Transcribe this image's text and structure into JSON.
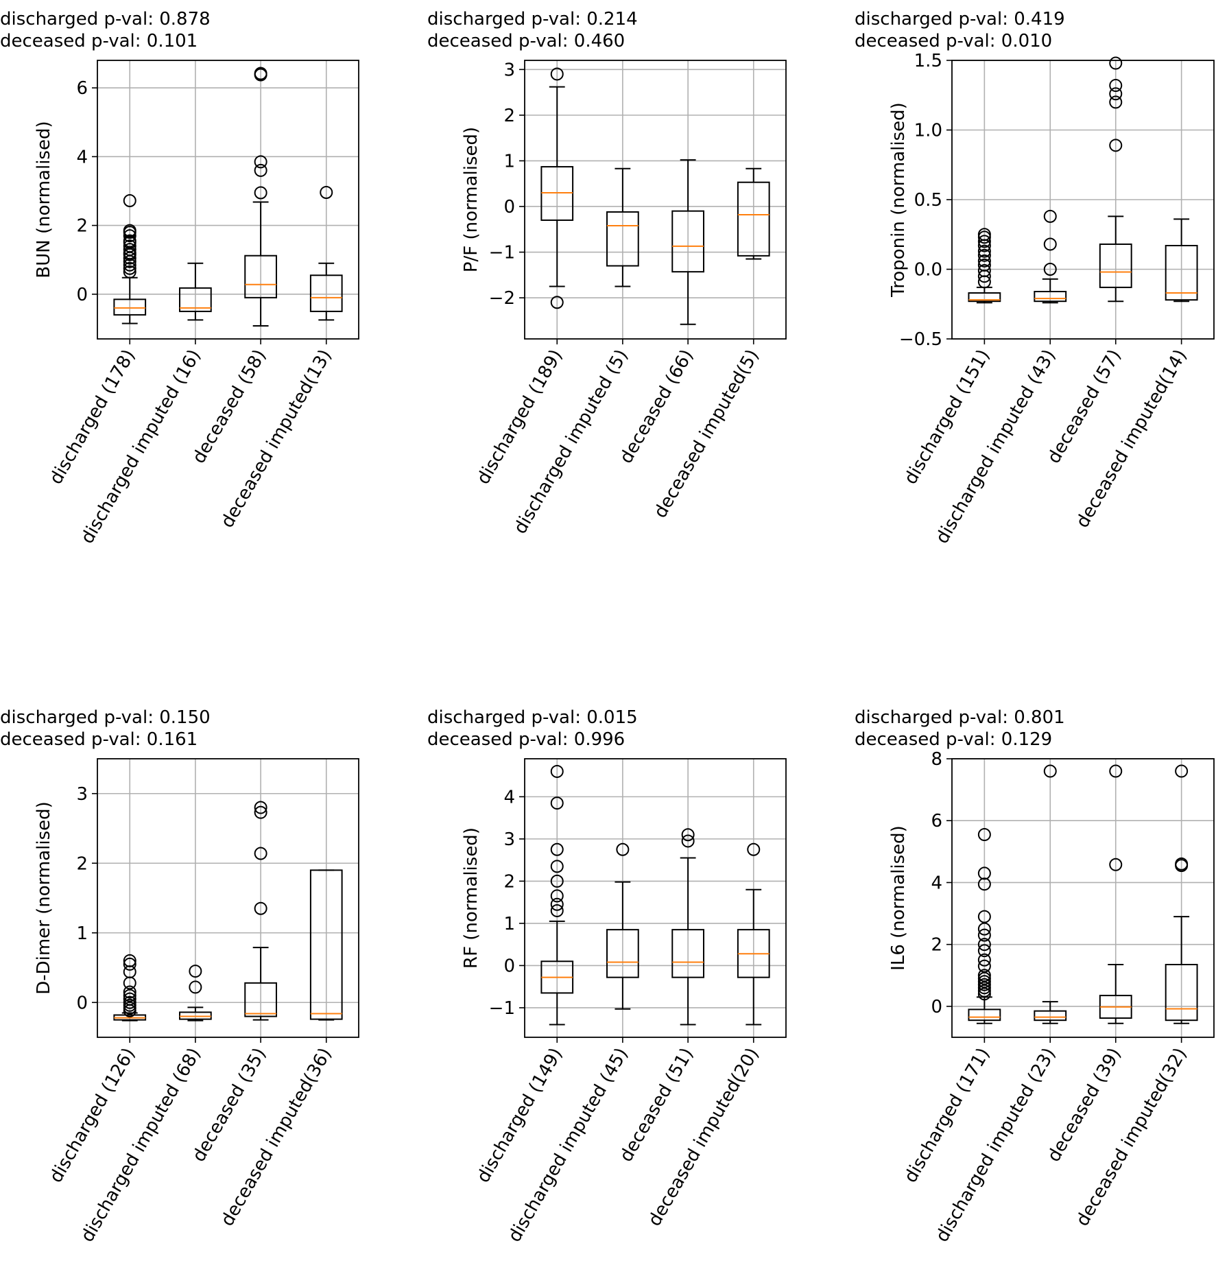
{
  "chart_data": [
    {
      "type": "boxplot",
      "title_lines": [
        "discharged p-val: 0.878",
        "deceased p-val: 0.101"
      ],
      "ylabel": "BUN (normalised)",
      "ylim": [
        -1.3,
        6.8
      ],
      "yticks": [
        {
          "v": 0,
          "label": "0"
        },
        {
          "v": 2,
          "label": "2"
        },
        {
          "v": 4,
          "label": "4"
        },
        {
          "v": 6,
          "label": "6"
        }
      ],
      "categories": [
        "discharged (178)",
        "discharged imputed (16)",
        "deceased (58)",
        "deceased imputed(13)"
      ],
      "boxes": [
        {
          "whislo": -0.85,
          "q1": -0.6,
          "med": -0.4,
          "q3": -0.15,
          "whishi": 0.48,
          "fliers": [
            0.65,
            0.75,
            0.85,
            0.95,
            1.05,
            1.15,
            1.2,
            1.3,
            1.4,
            1.5,
            1.55,
            1.7,
            1.8,
            1.85,
            2.72
          ]
        },
        {
          "whislo": -0.75,
          "q1": -0.5,
          "med": -0.4,
          "q3": 0.18,
          "whishi": 0.9,
          "fliers": []
        },
        {
          "whislo": -0.92,
          "q1": -0.1,
          "med": 0.28,
          "q3": 1.12,
          "whishi": 2.68,
          "fliers": [
            2.95,
            3.6,
            3.85,
            6.38,
            6.42
          ]
        },
        {
          "whislo": -0.75,
          "q1": -0.5,
          "med": -0.1,
          "q3": 0.55,
          "whishi": 0.9,
          "fliers": [
            2.96
          ]
        }
      ]
    },
    {
      "type": "boxplot",
      "title_lines": [
        "discharged p-val: 0.214",
        "deceased p-val: 0.460"
      ],
      "ylabel": "P/F (normalised)",
      "ylim": [
        -2.9,
        3.2
      ],
      "yticks": [
        {
          "v": -2,
          "label": "−2"
        },
        {
          "v": -1,
          "label": "−1"
        },
        {
          "v": 0,
          "label": "0"
        },
        {
          "v": 1,
          "label": "1"
        },
        {
          "v": 2,
          "label": "2"
        },
        {
          "v": 3,
          "label": "3"
        }
      ],
      "categories": [
        "discharged (189)",
        "discharged imputed (5)",
        "deceased (66)",
        "deceased imputed(5)"
      ],
      "boxes": [
        {
          "whislo": -1.75,
          "q1": -0.3,
          "med": 0.3,
          "q3": 0.87,
          "whishi": 2.62,
          "fliers": [
            -2.1,
            2.9
          ]
        },
        {
          "whislo": -1.75,
          "q1": -1.3,
          "med": -0.42,
          "q3": -0.12,
          "whishi": 0.83,
          "fliers": []
        },
        {
          "whislo": -2.58,
          "q1": -1.43,
          "med": -0.87,
          "q3": -0.1,
          "whishi": 1.02,
          "fliers": []
        },
        {
          "whislo": -1.15,
          "q1": -1.08,
          "med": -0.18,
          "q3": 0.53,
          "whishi": 0.83,
          "fliers": []
        }
      ]
    },
    {
      "type": "boxplot",
      "title_lines": [
        "discharged p-val: 0.419",
        "deceased p-val: 0.010"
      ],
      "ylabel": "Troponin (normalised)",
      "ylim": [
        -0.5,
        1.5
      ],
      "yticks": [
        {
          "v": -0.5,
          "label": "−0.5"
        },
        {
          "v": 0.0,
          "label": "0.0"
        },
        {
          "v": 0.5,
          "label": "0.5"
        },
        {
          "v": 1.0,
          "label": "1.0"
        },
        {
          "v": 1.5,
          "label": "1.5"
        }
      ],
      "categories": [
        "discharged (151)",
        "discharged imputed (43)",
        "deceased (57)",
        "deceased imputed(14)"
      ],
      "boxes": [
        {
          "whislo": -0.24,
          "q1": -0.23,
          "med": -0.22,
          "q3": -0.17,
          "whishi": -0.13,
          "fliers": [
            -0.09,
            -0.05,
            -0.01,
            0.03,
            0.06,
            0.1,
            0.13,
            0.17,
            0.2,
            0.23,
            0.25
          ]
        },
        {
          "whislo": -0.24,
          "q1": -0.23,
          "med": -0.21,
          "q3": -0.16,
          "whishi": -0.07,
          "fliers": [
            0.0,
            0.18,
            0.38
          ]
        },
        {
          "whislo": -0.23,
          "q1": -0.13,
          "med": -0.02,
          "q3": 0.18,
          "whishi": 0.38,
          "fliers": [
            0.89,
            1.2,
            1.26,
            1.32,
            1.48
          ]
        },
        {
          "whislo": -0.23,
          "q1": -0.22,
          "med": -0.17,
          "q3": 0.17,
          "whishi": 0.36,
          "fliers": []
        }
      ]
    },
    {
      "type": "boxplot",
      "title_lines": [
        "discharged p-val: 0.150",
        "deceased p-val: 0.161"
      ],
      "ylabel": "D-Dimer (normalised)",
      "ylim": [
        -0.5,
        3.5
      ],
      "yticks": [
        {
          "v": 0,
          "label": "0"
        },
        {
          "v": 1,
          "label": "1"
        },
        {
          "v": 2,
          "label": "2"
        },
        {
          "v": 3,
          "label": "3"
        }
      ],
      "categories": [
        "discharged (126)",
        "discharged imputed (68)",
        "deceased (35)",
        "deceased imputed(36)"
      ],
      "boxes": [
        {
          "whislo": -0.26,
          "q1": -0.25,
          "med": -0.22,
          "q3": -0.18,
          "whishi": -0.15,
          "fliers": [
            -0.12,
            -0.08,
            -0.04,
            0.0,
            0.05,
            0.1,
            0.15,
            0.28,
            0.44,
            0.55,
            0.6
          ]
        },
        {
          "whislo": -0.26,
          "q1": -0.24,
          "med": -0.2,
          "q3": -0.14,
          "whishi": -0.07,
          "fliers": [
            0.22,
            0.45
          ]
        },
        {
          "whislo": -0.25,
          "q1": -0.2,
          "med": -0.16,
          "q3": 0.28,
          "whishi": 0.79,
          "fliers": [
            1.35,
            2.14,
            2.73,
            2.8
          ]
        },
        {
          "whislo": -0.25,
          "q1": -0.24,
          "med": -0.16,
          "q3": 1.9,
          "whishi": 1.9,
          "fliers": []
        }
      ]
    },
    {
      "type": "boxplot",
      "title_lines": [
        "discharged p-val: 0.015",
        "deceased p-val: 0.996"
      ],
      "ylabel": "RF (normalised)",
      "ylim": [
        -1.7,
        4.9
      ],
      "yticks": [
        {
          "v": -1,
          "label": "−1"
        },
        {
          "v": 0,
          "label": "0"
        },
        {
          "v": 1,
          "label": "1"
        },
        {
          "v": 2,
          "label": "2"
        },
        {
          "v": 3,
          "label": "3"
        },
        {
          "v": 4,
          "label": "4"
        }
      ],
      "categories": [
        "discharged (149)",
        "discharged imputed (45)",
        "deceased (51)",
        "deceased imputed(20)"
      ],
      "boxes": [
        {
          "whislo": -1.4,
          "q1": -0.65,
          "med": -0.28,
          "q3": 0.1,
          "whishi": 1.05,
          "fliers": [
            1.3,
            1.45,
            1.65,
            2.0,
            2.35,
            2.75,
            3.85,
            4.6
          ]
        },
        {
          "whislo": -1.03,
          "q1": -0.28,
          "med": 0.08,
          "q3": 0.85,
          "whishi": 1.98,
          "fliers": [
            2.75
          ]
        },
        {
          "whislo": -1.4,
          "q1": -0.28,
          "med": 0.08,
          "q3": 0.85,
          "whishi": 2.55,
          "fliers": [
            2.95,
            3.1
          ]
        },
        {
          "whislo": -1.4,
          "q1": -0.28,
          "med": 0.28,
          "q3": 0.85,
          "whishi": 1.8,
          "fliers": [
            2.75
          ]
        }
      ]
    },
    {
      "type": "boxplot",
      "title_lines": [
        "discharged p-val: 0.801",
        "deceased p-val: 0.129"
      ],
      "ylabel": "IL6 (normalised)",
      "ylim": [
        -1.0,
        8.0
      ],
      "yticks": [
        {
          "v": 0,
          "label": "0"
        },
        {
          "v": 2,
          "label": "2"
        },
        {
          "v": 4,
          "label": "4"
        },
        {
          "v": 6,
          "label": "6"
        },
        {
          "v": 8,
          "label": "8"
        }
      ],
      "categories": [
        "discharged (171)",
        "discharged imputed (23)",
        "deceased (39)",
        "deceased imputed(32)"
      ],
      "boxes": [
        {
          "whislo": -0.55,
          "q1": -0.45,
          "med": -0.35,
          "q3": -0.1,
          "whishi": 0.3,
          "fliers": [
            0.4,
            0.5,
            0.6,
            0.7,
            0.8,
            0.9,
            1.0,
            1.3,
            1.5,
            1.8,
            2.0,
            2.3,
            2.5,
            2.9,
            3.95,
            4.3,
            5.55
          ]
        },
        {
          "whislo": -0.55,
          "q1": -0.45,
          "med": -0.35,
          "q3": -0.15,
          "whishi": 0.15,
          "fliers": [
            7.6
          ]
        },
        {
          "whislo": -0.55,
          "q1": -0.38,
          "med": -0.02,
          "q3": 0.35,
          "whishi": 1.35,
          "fliers": [
            4.58,
            7.6
          ]
        },
        {
          "whislo": -0.55,
          "q1": -0.45,
          "med": -0.08,
          "q3": 1.35,
          "whishi": 2.9,
          "fliers": [
            4.55,
            4.6,
            7.6
          ]
        }
      ]
    }
  ]
}
